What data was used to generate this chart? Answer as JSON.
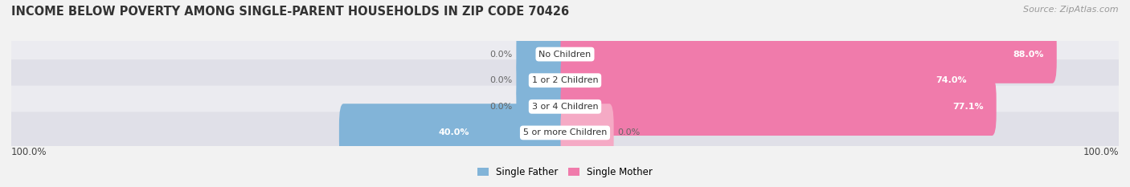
{
  "title": "INCOME BELOW POVERTY AMONG SINGLE-PARENT HOUSEHOLDS IN ZIP CODE 70426",
  "source": "Source: ZipAtlas.com",
  "categories": [
    "No Children",
    "1 or 2 Children",
    "3 or 4 Children",
    "5 or more Children"
  ],
  "father_values": [
    0.0,
    0.0,
    0.0,
    40.0
  ],
  "mother_values": [
    88.0,
    74.0,
    77.1,
    0.0
  ],
  "father_color": "#82b4d8",
  "mother_color": "#f07bab",
  "mother_stub_color": "#f5aac5",
  "background_color": "#f2f2f2",
  "row_color_even": "#ebebf0",
  "row_color_odd": "#e0e0e8",
  "axis_label_left": "100.0%",
  "axis_label_right": "100.0%",
  "legend_father": "Single Father",
  "legend_mother": "Single Mother",
  "title_fontsize": 10.5,
  "source_fontsize": 8,
  "bar_label_fontsize": 8,
  "cat_label_fontsize": 8,
  "max_val": 100.0,
  "stub_size": 8.0
}
